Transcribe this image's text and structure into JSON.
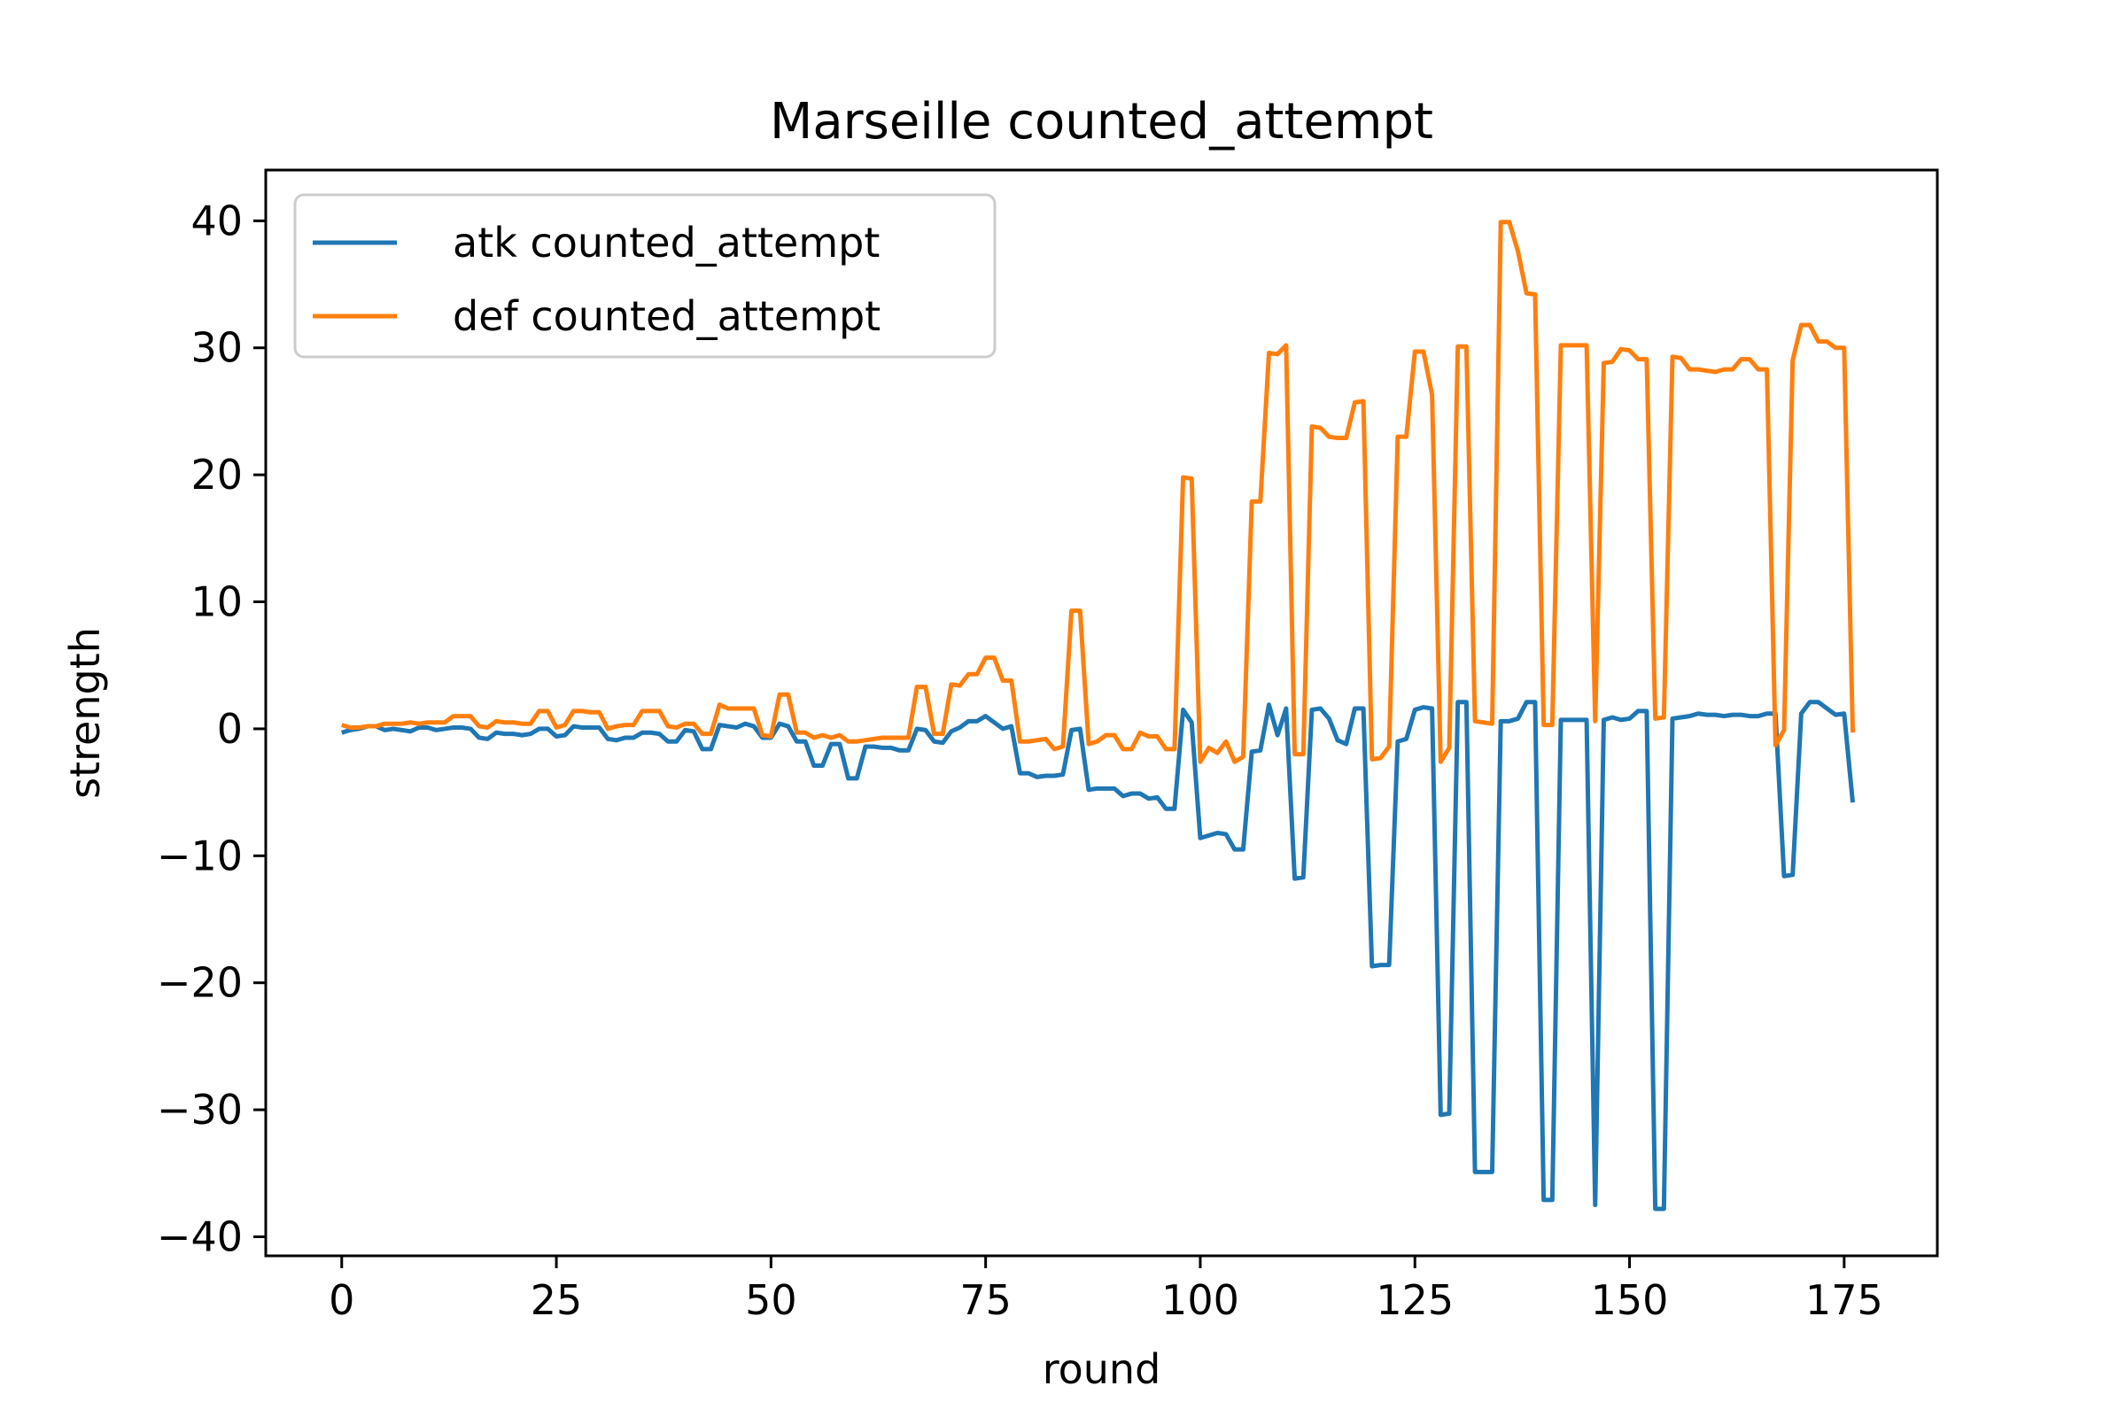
{
  "chart_data": {
    "type": "line",
    "title": "Marseille counted_attempt",
    "xlabel": "round",
    "ylabel": "strength",
    "xlim": [
      -8.85,
      185.85
    ],
    "ylim": [
      -41.5,
      44.0
    ],
    "xticks": [
      0,
      25,
      50,
      75,
      100,
      125,
      150,
      175
    ],
    "yticks": [
      -40,
      -30,
      -20,
      -10,
      0,
      10,
      20,
      30,
      40
    ],
    "xtick_labels": [
      "0",
      "25",
      "50",
      "75",
      "100",
      "125",
      "150",
      "175"
    ],
    "ytick_labels": [
      "−40",
      "−30",
      "−20",
      "−10",
      "0",
      "10",
      "20",
      "30",
      "40"
    ],
    "grid": false,
    "legend_position": "top-left",
    "series": [
      {
        "name": "atk counted_attempt",
        "color": "#1f77b4",
        "values": [
          -0.3,
          -0.1,
          0.0,
          0.2,
          0.2,
          -0.1,
          0.0,
          -0.1,
          -0.2,
          0.1,
          0.1,
          -0.1,
          0.0,
          0.1,
          0.1,
          0.0,
          -0.7,
          -0.8,
          -0.3,
          -0.4,
          -0.4,
          -0.5,
          -0.4,
          0.0,
          0.0,
          -0.6,
          -0.5,
          0.2,
          0.1,
          0.1,
          0.1,
          -0.8,
          -0.9,
          -0.7,
          -0.7,
          -0.3,
          -0.3,
          -0.4,
          -1.0,
          -1.0,
          -0.1,
          -0.2,
          -1.6,
          -1.6,
          0.3,
          0.2,
          0.1,
          0.4,
          0.2,
          -0.7,
          -0.7,
          0.4,
          0.2,
          -1.0,
          -1.0,
          -2.9,
          -2.9,
          -1.2,
          -1.2,
          -3.9,
          -3.9,
          -1.4,
          -1.4,
          -1.5,
          -1.5,
          -1.7,
          -1.7,
          0.0,
          -0.1,
          -1.0,
          -1.1,
          -0.2,
          0.1,
          0.6,
          0.6,
          1.0,
          0.5,
          0.0,
          0.2,
          -3.5,
          -3.5,
          -3.8,
          -3.7,
          -3.7,
          -3.6,
          -0.1,
          0.0,
          -4.8,
          -4.7,
          -4.7,
          -4.7,
          -5.3,
          -5.1,
          -5.1,
          -5.5,
          -5.4,
          -6.3,
          -6.3,
          1.5,
          0.5,
          -8.6,
          -8.4,
          -8.2,
          -8.3,
          -9.5,
          -9.5,
          -1.8,
          -1.7,
          1.9,
          -0.5,
          1.6,
          -11.8,
          -11.7,
          1.5,
          1.6,
          0.8,
          -0.9,
          -1.2,
          1.6,
          1.6,
          -18.7,
          -18.6,
          -18.6,
          -1.0,
          -0.8,
          1.5,
          1.7,
          1.6,
          -30.4,
          -30.3,
          2.1,
          2.1,
          -34.9,
          -34.9,
          -34.9,
          0.6,
          0.6,
          0.8,
          2.1,
          2.1,
          -37.1,
          -37.1,
          0.7,
          0.7,
          0.7,
          0.7,
          -37.5,
          0.7,
          0.9,
          0.7,
          0.8,
          1.4,
          1.4,
          -37.8,
          -37.8,
          0.8,
          0.9,
          1.0,
          1.2,
          1.1,
          1.1,
          1.0,
          1.1,
          1.1,
          1.0,
          1.0,
          1.2,
          1.2,
          -11.6,
          -11.5,
          1.2,
          2.1,
          2.1,
          1.6,
          1.1,
          1.2,
          -5.8
        ]
      },
      {
        "name": "def counted_attempt",
        "color": "#ff7f0e",
        "values": [
          0.3,
          0.1,
          0.1,
          0.2,
          0.2,
          0.4,
          0.4,
          0.4,
          0.5,
          0.4,
          0.5,
          0.5,
          0.5,
          1.0,
          1.0,
          1.0,
          0.2,
          0.1,
          0.6,
          0.5,
          0.5,
          0.4,
          0.4,
          1.4,
          1.4,
          0.1,
          0.3,
          1.4,
          1.4,
          1.3,
          1.3,
          0.0,
          0.2,
          0.3,
          0.3,
          1.4,
          1.4,
          1.4,
          0.2,
          0.1,
          0.4,
          0.4,
          -0.4,
          -0.4,
          1.9,
          1.6,
          1.6,
          1.6,
          1.6,
          -0.5,
          -0.6,
          2.7,
          2.7,
          -0.3,
          -0.3,
          -0.7,
          -0.5,
          -0.7,
          -0.5,
          -1.0,
          -1.0,
          -0.9,
          -0.8,
          -0.7,
          -0.7,
          -0.7,
          -0.7,
          3.3,
          3.3,
          -0.4,
          -0.4,
          3.5,
          3.4,
          4.3,
          4.3,
          5.6,
          5.6,
          3.8,
          3.8,
          -1.0,
          -1.0,
          -0.9,
          -0.8,
          -1.6,
          -1.4,
          9.3,
          9.3,
          -1.2,
          -1.0,
          -0.5,
          -0.5,
          -1.6,
          -1.6,
          -0.3,
          -0.6,
          -0.6,
          -1.6,
          -1.6,
          19.8,
          19.7,
          -2.6,
          -1.5,
          -1.9,
          -1.0,
          -2.6,
          -2.2,
          17.9,
          17.9,
          29.6,
          29.5,
          30.2,
          -2.0,
          -2.0,
          23.8,
          23.7,
          23.0,
          22.9,
          22.9,
          25.7,
          25.8,
          -2.4,
          -2.3,
          -1.4,
          23.0,
          23.0,
          29.7,
          29.7,
          26.3,
          -2.6,
          -1.5,
          30.1,
          30.1,
          0.6,
          0.5,
          0.4,
          39.9,
          39.9,
          37.6,
          34.3,
          34.2,
          0.3,
          0.3,
          30.2,
          30.2,
          30.2,
          30.2,
          0.6,
          28.8,
          28.9,
          29.9,
          29.8,
          29.1,
          29.1,
          0.8,
          0.9,
          29.3,
          29.2,
          28.3,
          28.3,
          28.2,
          28.1,
          28.3,
          28.3,
          29.1,
          29.1,
          28.3,
          28.3,
          -1.3,
          -0.1,
          29.0,
          31.8,
          31.8,
          30.5,
          30.5,
          30.0,
          30.0,
          -0.3
        ]
      }
    ]
  }
}
